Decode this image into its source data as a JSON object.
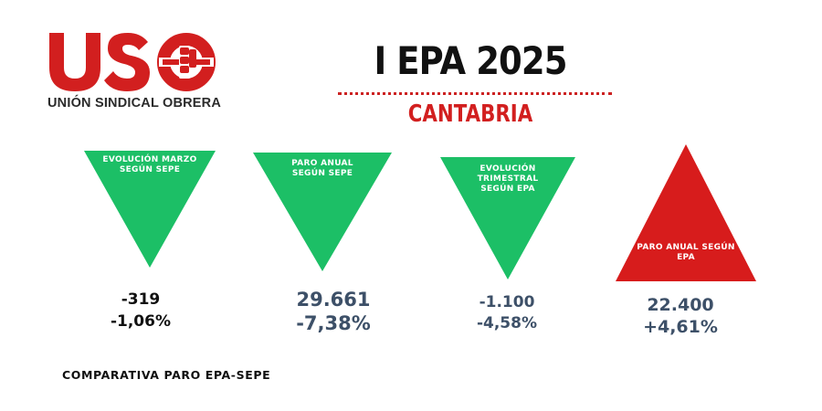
{
  "logo": {
    "wordmark": "USO",
    "subtitle": "UNIÓN SINDICAL OBRERA"
  },
  "header": {
    "title": "I EPA 2025",
    "region": "CANTABRIA"
  },
  "indicators": [
    {
      "label_lines": [
        "EVOLUCIÓN MARZO",
        "SEGÚN SEPE"
      ],
      "value": "-319",
      "percent": "-1,06%",
      "direction": "down",
      "color": "#1cbf66",
      "value_color": "#111111"
    },
    {
      "label_lines": [
        "PARO ANUAL",
        "SEGÚN SEPE"
      ],
      "value": "29.661",
      "percent": "-7,38%",
      "direction": "down",
      "color": "#1cbf66",
      "value_color": "#3d5068"
    },
    {
      "label_lines": [
        "EVOLUCIÓN",
        "TRIMESTRAL",
        "SEGÚN EPA"
      ],
      "value": "-1.100",
      "percent": "-4,58%",
      "direction": "down",
      "color": "#1cbf66",
      "value_color": "#3d5068"
    },
    {
      "label_lines": [
        "PARO ANUAL SEGÚN",
        "EPA"
      ],
      "value": "22.400",
      "percent": "+4,61%",
      "direction": "up",
      "color": "#d71c1c",
      "value_color": "#3d5068"
    }
  ],
  "footer": "COMPARATIVA PARO EPA-SEPE",
  "colors": {
    "brand_red": "#d21f1f",
    "positive_green": "#1cbf66",
    "negative_red": "#d71c1c"
  }
}
